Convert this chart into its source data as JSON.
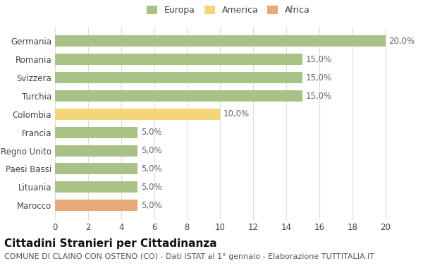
{
  "categories": [
    "Germania",
    "Romania",
    "Svizzera",
    "Turchia",
    "Colombia",
    "Francia",
    "Regno Unito",
    "Paesi Bassi",
    "Lituania",
    "Marocco"
  ],
  "values": [
    20.0,
    15.0,
    15.0,
    15.0,
    10.0,
    5.0,
    5.0,
    5.0,
    5.0,
    5.0
  ],
  "colors": [
    "#a8c285",
    "#a8c285",
    "#a8c285",
    "#a8c285",
    "#f5d57a",
    "#a8c285",
    "#a8c285",
    "#a8c285",
    "#a8c285",
    "#e8a878"
  ],
  "legend_labels": [
    "Europa",
    "America",
    "Africa"
  ],
  "legend_colors": [
    "#a8c285",
    "#f5d57a",
    "#e8a878"
  ],
  "title": "Cittadini Stranieri per Cittadinanza",
  "subtitle": "COMUNE DI CLAINO CON OSTENO (CO) - Dati ISTAT al 1° gennaio - Elaborazione TUTTITALIA.IT",
  "xlim": [
    0,
    21
  ],
  "xticks": [
    0,
    2,
    4,
    6,
    8,
    10,
    12,
    14,
    16,
    18,
    20
  ],
  "bar_height": 0.62,
  "background_color": "#ffffff",
  "grid_color": "#dddddd",
  "label_fontsize": 8.5,
  "title_fontsize": 11,
  "subtitle_fontsize": 8,
  "tick_fontsize": 8.5,
  "legend_fontsize": 9
}
